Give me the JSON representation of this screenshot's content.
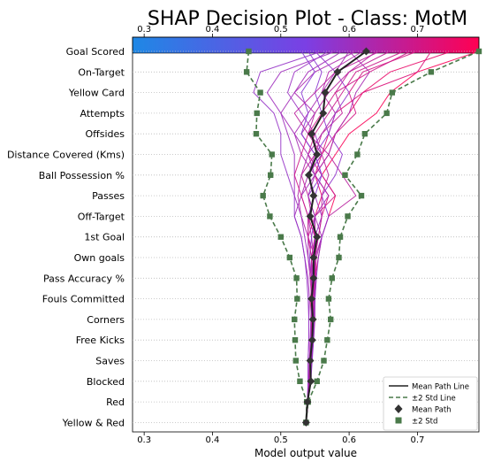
{
  "chart_data": {
    "type": "line",
    "title": "SHAP Decision Plot - Class: MotM",
    "xlabel": "Model output value",
    "ylabel": "",
    "xlim": [
      0.283,
      0.79
    ],
    "xticks": [
      0.3,
      0.4,
      0.5,
      0.6,
      0.7
    ],
    "xtick_labels": [
      "0.3",
      "0.4",
      "0.5",
      "0.6",
      "0.7"
    ],
    "colorbar": {
      "ticks": [
        "0.3",
        "0.4",
        "0.5",
        "0.6",
        "0.7"
      ],
      "low_color": "#1e88e5",
      "high_color": "#ff0052"
    },
    "features": [
      "Goal Scored",
      "On-Target",
      "Yellow Card",
      "Attempts",
      "Offsides",
      "Distance Covered (Kms)",
      "Ball Possession %",
      "Passes",
      "Off-Target",
      "1st Goal",
      "Own goals",
      "Pass Accuracy %",
      "Fouls Committed",
      "Corners",
      "Free Kicks",
      "Saves",
      "Blocked",
      "Red",
      "Yellow & Red"
    ],
    "grid": "horizontal dotted",
    "legend": {
      "placement": "bottom-right",
      "entries": [
        {
          "label": "Mean Path Line",
          "color": "#222222",
          "style": "solid"
        },
        {
          "label": "±2 Std Line",
          "color": "#4a7a4a",
          "style": "dashed"
        },
        {
          "label": "Mean Path",
          "color": "#333333",
          "marker": "diamond"
        },
        {
          "label": "±2 Std",
          "color": "#4a7a4a",
          "marker": "square"
        }
      ]
    },
    "series": [
      {
        "name": "Mean Path",
        "values": [
          0.625,
          0.583,
          0.565,
          0.562,
          0.545,
          0.553,
          0.541,
          0.548,
          0.543,
          0.553,
          0.548,
          0.548,
          0.545,
          0.547,
          0.546,
          0.543,
          0.544,
          0.539,
          0.537
        ]
      },
      {
        "name": "+2 Std",
        "values": [
          0.79,
          0.72,
          0.663,
          0.655,
          0.623,
          0.612,
          0.594,
          0.618,
          0.598,
          0.587,
          0.585,
          0.575,
          0.57,
          0.573,
          0.568,
          0.563,
          0.553,
          0.54,
          0.537
        ]
      },
      {
        "name": "-2 Std",
        "values": [
          0.453,
          0.45,
          0.47,
          0.465,
          0.464,
          0.487,
          0.485,
          0.474,
          0.484,
          0.5,
          0.513,
          0.523,
          0.524,
          0.52,
          0.521,
          0.522,
          0.528,
          0.538,
          0.537
        ]
      },
      {
        "values": [
          0.79,
          0.7,
          0.66,
          0.64,
          0.6,
          0.58,
          0.56,
          0.58,
          0.57,
          0.56,
          0.555,
          0.55,
          0.55,
          0.548,
          0.546,
          0.545,
          0.543,
          0.54,
          0.537
        ]
      },
      {
        "values": [
          0.75,
          0.66,
          0.62,
          0.6,
          0.58,
          0.57,
          0.55,
          0.56,
          0.55,
          0.55,
          0.548,
          0.55,
          0.547,
          0.546,
          0.545,
          0.544,
          0.542,
          0.54,
          0.537
        ]
      },
      {
        "values": [
          0.72,
          0.7,
          0.62,
          0.58,
          0.57,
          0.56,
          0.55,
          0.57,
          0.56,
          0.555,
          0.55,
          0.545,
          0.548,
          0.547,
          0.546,
          0.543,
          0.542,
          0.539,
          0.537
        ]
      },
      {
        "values": [
          0.7,
          0.62,
          0.6,
          0.61,
          0.58,
          0.56,
          0.54,
          0.55,
          0.54,
          0.55,
          0.545,
          0.548,
          0.543,
          0.545,
          0.544,
          0.542,
          0.541,
          0.539,
          0.537
        ]
      },
      {
        "values": [
          0.68,
          0.61,
          0.59,
          0.57,
          0.55,
          0.54,
          0.56,
          0.58,
          0.55,
          0.54,
          0.55,
          0.552,
          0.55,
          0.547,
          0.546,
          0.544,
          0.542,
          0.54,
          0.537
        ]
      },
      {
        "values": [
          0.66,
          0.6,
          0.58,
          0.59,
          0.56,
          0.55,
          0.53,
          0.54,
          0.545,
          0.55,
          0.545,
          0.547,
          0.545,
          0.548,
          0.545,
          0.543,
          0.541,
          0.539,
          0.537
        ]
      },
      {
        "values": [
          0.64,
          0.6,
          0.57,
          0.55,
          0.54,
          0.57,
          0.59,
          0.61,
          0.57,
          0.56,
          0.552,
          0.55,
          0.55,
          0.55,
          0.548,
          0.545,
          0.543,
          0.54,
          0.537
        ]
      },
      {
        "values": [
          0.62,
          0.57,
          0.56,
          0.58,
          0.56,
          0.54,
          0.53,
          0.525,
          0.53,
          0.54,
          0.54,
          0.543,
          0.545,
          0.544,
          0.543,
          0.542,
          0.541,
          0.539,
          0.537
        ]
      },
      {
        "values": [
          0.61,
          0.55,
          0.52,
          0.55,
          0.53,
          0.55,
          0.54,
          0.53,
          0.54,
          0.545,
          0.548,
          0.55,
          0.546,
          0.545,
          0.545,
          0.543,
          0.542,
          0.54,
          0.537
        ]
      },
      {
        "values": [
          0.6,
          0.58,
          0.56,
          0.54,
          0.52,
          0.53,
          0.55,
          0.57,
          0.55,
          0.56,
          0.55,
          0.548,
          0.55,
          0.548,
          0.547,
          0.545,
          0.543,
          0.539,
          0.537
        ]
      },
      {
        "values": [
          0.59,
          0.54,
          0.52,
          0.5,
          0.52,
          0.54,
          0.55,
          0.53,
          0.52,
          0.53,
          0.535,
          0.54,
          0.542,
          0.541,
          0.541,
          0.54,
          0.54,
          0.539,
          0.537
        ]
      },
      {
        "values": [
          0.58,
          0.5,
          0.48,
          0.5,
          0.51,
          0.52,
          0.52,
          0.52,
          0.53,
          0.535,
          0.54,
          0.545,
          0.545,
          0.544,
          0.544,
          0.543,
          0.542,
          0.539,
          0.537
        ]
      },
      {
        "values": [
          0.57,
          0.52,
          0.51,
          0.53,
          0.55,
          0.56,
          0.54,
          0.55,
          0.56,
          0.55,
          0.548,
          0.55,
          0.548,
          0.547,
          0.546,
          0.544,
          0.542,
          0.54,
          0.537
        ]
      },
      {
        "values": [
          0.56,
          0.47,
          0.46,
          0.49,
          0.5,
          0.5,
          0.51,
          0.52,
          0.52,
          0.53,
          0.535,
          0.538,
          0.54,
          0.541,
          0.541,
          0.54,
          0.54,
          0.539,
          0.537
        ]
      },
      {
        "values": [
          0.55,
          0.58,
          0.6,
          0.58,
          0.57,
          0.59,
          0.58,
          0.56,
          0.57,
          0.56,
          0.555,
          0.552,
          0.55,
          0.549,
          0.548,
          0.546,
          0.544,
          0.54,
          0.537
        ]
      },
      {
        "values": [
          0.54,
          0.56,
          0.55,
          0.56,
          0.57,
          0.55,
          0.56,
          0.54,
          0.55,
          0.545,
          0.542,
          0.545,
          0.545,
          0.545,
          0.544,
          0.543,
          0.542,
          0.539,
          0.537
        ]
      },
      {
        "values": [
          0.53,
          0.55,
          0.53,
          0.54,
          0.53,
          0.55,
          0.56,
          0.55,
          0.54,
          0.54,
          0.545,
          0.546,
          0.546,
          0.545,
          0.545,
          0.543,
          0.542,
          0.539,
          0.537
        ]
      },
      {
        "values": [
          0.6,
          0.63,
          0.61,
          0.6,
          0.58,
          0.57,
          0.55,
          0.54,
          0.55,
          0.55,
          0.55,
          0.55,
          0.548,
          0.547,
          0.546,
          0.544,
          0.542,
          0.54,
          0.537
        ]
      },
      {
        "values": [
          0.69,
          0.63,
          0.58,
          0.56,
          0.54,
          0.53,
          0.52,
          0.53,
          0.54,
          0.54,
          0.545,
          0.544,
          0.546,
          0.545,
          0.545,
          0.543,
          0.542,
          0.539,
          0.537
        ]
      },
      {
        "values": [
          0.645,
          0.58,
          0.55,
          0.52,
          0.54,
          0.56,
          0.57,
          0.56,
          0.56,
          0.555,
          0.55,
          0.55,
          0.548,
          0.547,
          0.546,
          0.544,
          0.542,
          0.54,
          0.537
        ]
      }
    ]
  }
}
